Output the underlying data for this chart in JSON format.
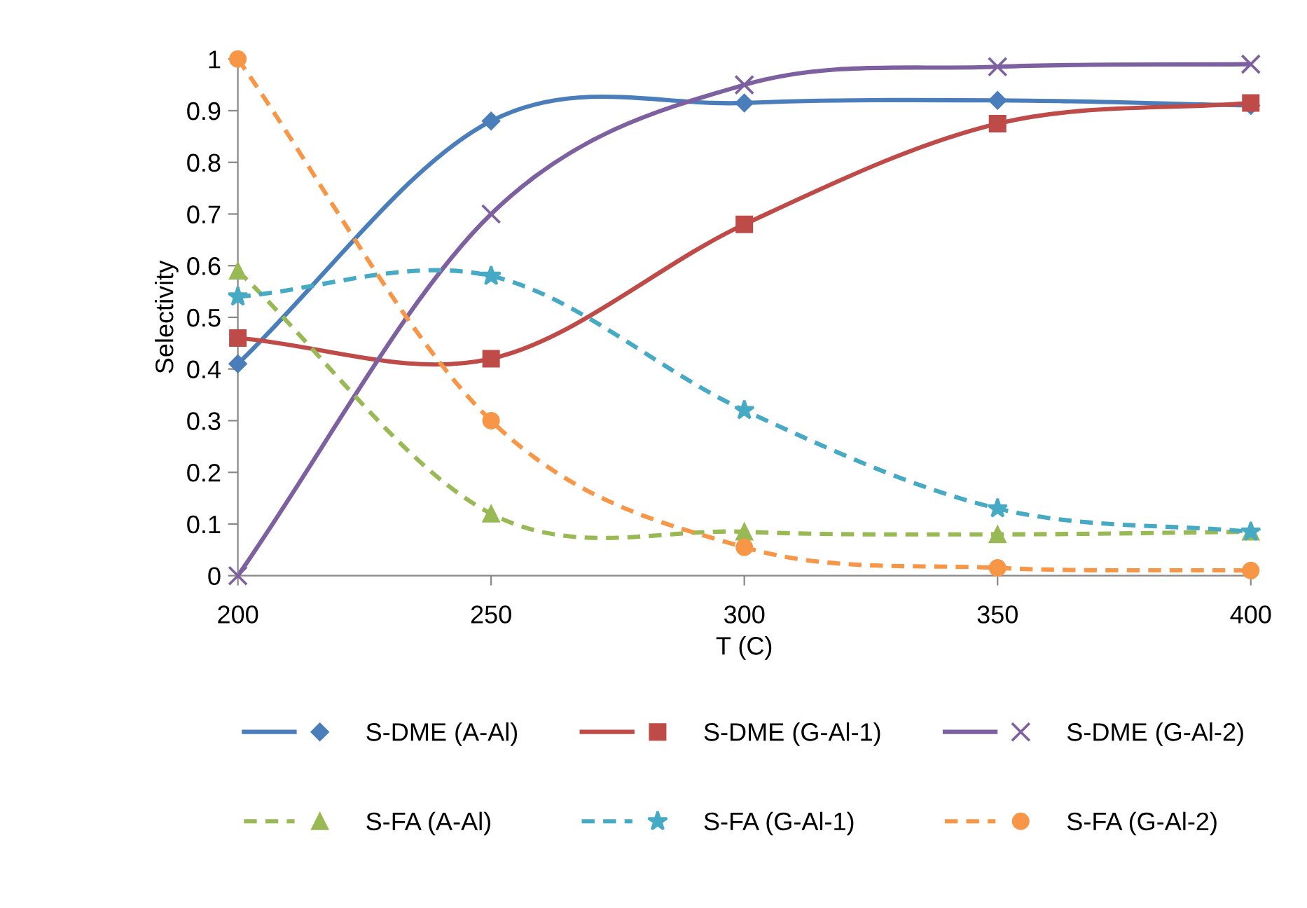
{
  "chart_data": {
    "type": "line",
    "xlabel": "T (C)",
    "ylabel": "Selectivity",
    "x": [
      200,
      250,
      300,
      350,
      400
    ],
    "xlim": [
      200,
      400
    ],
    "xticks": [
      200,
      250,
      300,
      350,
      400
    ],
    "ylim": [
      0,
      1
    ],
    "yticks": [
      0,
      0.1,
      0.2,
      0.3,
      0.4,
      0.5,
      0.6,
      0.7,
      0.8,
      0.9,
      1
    ],
    "grid": false,
    "legend": "bottom",
    "series": [
      {
        "name": "S-DME (A-Al)",
        "color": "#4a7ebb",
        "marker": "diamond",
        "line_style": "solid",
        "values": [
          0.41,
          0.88,
          0.915,
          0.92,
          0.91
        ]
      },
      {
        "name": "S-DME (G-Al-1)",
        "color": "#be4b48",
        "marker": "square",
        "line_style": "solid",
        "values": [
          0.46,
          0.42,
          0.68,
          0.875,
          0.915
        ]
      },
      {
        "name": "S-DME (G-Al-2)",
        "color": "#7d60a0",
        "marker": "cross",
        "line_style": "solid",
        "values": [
          0,
          0.7,
          0.95,
          0.985,
          0.99
        ]
      },
      {
        "name": "S-FA (A-Al)",
        "color": "#98b954",
        "marker": "triangle",
        "line_style": "dashed",
        "values": [
          0.59,
          0.12,
          0.085,
          0.08,
          0.085
        ]
      },
      {
        "name": "S-FA (G-Al-1)",
        "color": "#46aac5",
        "marker": "star",
        "line_style": "dashed",
        "values": [
          0.54,
          0.58,
          0.32,
          0.13,
          0.085
        ]
      },
      {
        "name": "S-FA (G-Al-2)",
        "color": "#f79646",
        "marker": "circle",
        "line_style": "dashed",
        "values": [
          1.0,
          0.3,
          0.055,
          0.015,
          0.01
        ]
      }
    ]
  }
}
